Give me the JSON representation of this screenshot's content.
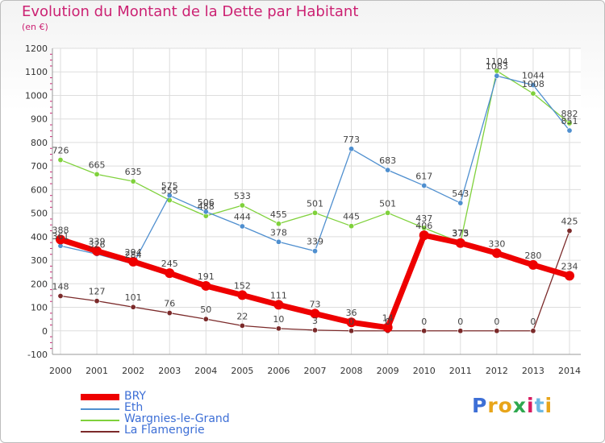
{
  "header": {
    "title": "Evolution du Montant de la Dette par Habitant",
    "unit": "(en €)"
  },
  "logo": {
    "text": "Proxiti",
    "letter_colors": [
      "#3d6fd6",
      "#e8a51a",
      "#e8a51a",
      "#2fa84f",
      "#d81b60",
      "#6cb8e4",
      "#e8a51a"
    ]
  },
  "chart_data": {
    "type": "line",
    "title": "Evolution du Montant de la Dette par Habitant",
    "subtitle": "(en €)",
    "xlabel": "",
    "ylabel": "",
    "ylim": [
      -100,
      1200
    ],
    "y_ticks": [
      -100,
      0,
      100,
      200,
      300,
      400,
      500,
      600,
      700,
      800,
      900,
      1000,
      1100,
      1200
    ],
    "x": [
      "2000",
      "2001",
      "2002",
      "2003",
      "2004",
      "2005",
      "2006",
      "2007",
      "2008",
      "2009",
      "2010",
      "2011",
      "2012",
      "2013",
      "2014"
    ],
    "grid": true,
    "legend_position": "bottom-left",
    "series": [
      {
        "name": "La Flamengrie",
        "color": "#7b2a2a",
        "values": [
          148,
          127,
          101,
          76,
          50,
          22,
          10,
          3,
          0,
          0,
          0,
          0,
          0,
          0,
          425
        ]
      },
      {
        "name": "Wargnies-le-Grand",
        "color": "#7fd13b",
        "values": [
          726,
          665,
          635,
          555,
          488,
          533,
          455,
          501,
          445,
          501,
          437,
          375,
          1104,
          1008,
          882
        ]
      },
      {
        "name": "Eth",
        "color": "#4f8fcf",
        "values": [
          361,
          326,
          284,
          575,
          506,
          444,
          378,
          339,
          773,
          683,
          617,
          543,
          1083,
          1044,
          851
        ]
      },
      {
        "name": "BRY",
        "color": "#ee0000",
        "values": [
          388,
          339,
          294,
          245,
          191,
          152,
          111,
          73,
          36,
          14,
          406,
          373,
          330,
          280,
          234
        ]
      }
    ]
  }
}
